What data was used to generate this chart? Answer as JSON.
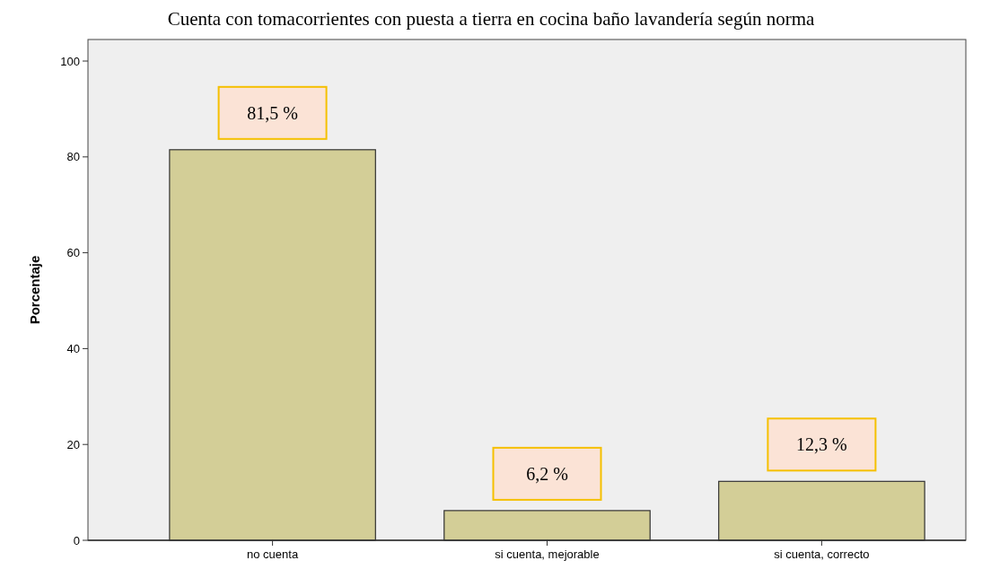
{
  "chart_data": {
    "type": "bar",
    "title": "Cuenta con tomacorrientes con puesta a tierra en cocina baño lavandería según norma",
    "ylabel": "Porcentaje",
    "categories": [
      "no cuenta",
      "si cuenta, mejorable",
      "si cuenta, correcto"
    ],
    "values": [
      81.5,
      6.2,
      12.3
    ],
    "value_labels": [
      "81,5 %",
      "6,2 %",
      "12,3 %"
    ],
    "color": "#d3ce97",
    "ylim": [
      0,
      104.5
    ],
    "yticks": [
      0,
      20,
      40,
      60,
      80,
      100
    ],
    "grid": false
  }
}
